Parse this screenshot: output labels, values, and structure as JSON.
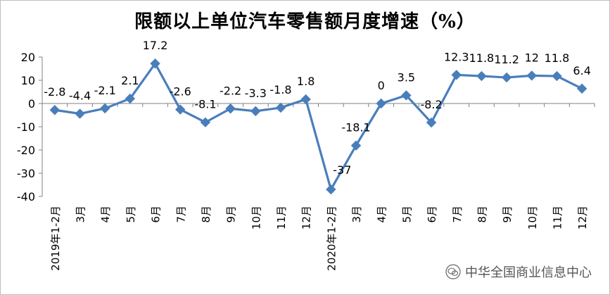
{
  "chart_data": {
    "type": "line",
    "title": "限额以上单位汽车零售额月度增速（%）",
    "categories": [
      "1-2月",
      "3月",
      "4月",
      "5月",
      "6月",
      "7月",
      "8月",
      "9月",
      "10月",
      "11月",
      "12月",
      "1-2月",
      "3月",
      "4月",
      "5月",
      "6月",
      "7月",
      "8月",
      "9月",
      "10月",
      "11月",
      "12月"
    ],
    "year_groups": [
      {
        "label": "2019年",
        "start_index": 0
      },
      {
        "label": "2020年",
        "start_index": 11
      }
    ],
    "series": [
      {
        "values": [
          -2.8,
          -4.4,
          -2.1,
          2.1,
          17.2,
          -2.6,
          -8.1,
          -2.2,
          -3.3,
          -1.8,
          1.8,
          -37,
          -18.1,
          0,
          3.5,
          -8.2,
          12.3,
          11.8,
          11.2,
          12,
          11.8,
          6.4
        ],
        "color": "#4a7ebb"
      }
    ],
    "data_labels": [
      "-2.8",
      "-4.4",
      "-2.1",
      "2.1",
      "17.2",
      "-2.6",
      "-8.1",
      "-2.2",
      "-3.3",
      "-1.8",
      "1.8",
      "-37",
      "-18.1",
      "0",
      "3.5",
      "-8.2",
      "12.3",
      "11.8",
      "11.2",
      "12",
      "11.8",
      "6.4"
    ],
    "ylim": [
      -40,
      20
    ],
    "yticks": [
      20,
      10,
      0,
      -10,
      -20,
      -30,
      -40
    ],
    "grid": false,
    "marker": "diamond"
  },
  "watermark": {
    "text": "中华全国商业信息中心",
    "icon": "wechat-icon"
  }
}
